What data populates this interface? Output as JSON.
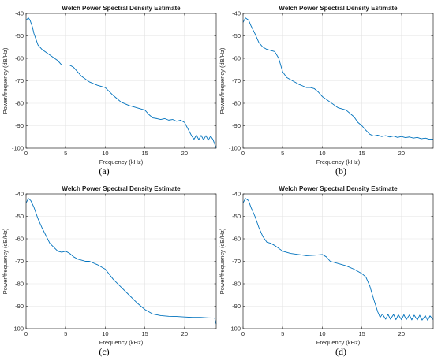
{
  "chart_data": [
    {
      "type": "line",
      "panel_label": "(a)",
      "title": "Welch Power Spectral Density Estimate",
      "xlabel": "Frequency (kHz)",
      "ylabel": "Power/frequency (dB/Hz)",
      "xlim": [
        0,
        24
      ],
      "ylim": [
        -100,
        -40
      ],
      "xticks": [
        0,
        5,
        10,
        15,
        20
      ],
      "yticks": [
        -100,
        -90,
        -80,
        -70,
        -60,
        -50,
        -40
      ],
      "grid": true,
      "line_color": "#0072BD",
      "x": [
        0,
        0.3,
        0.5,
        0.8,
        1.0,
        1.5,
        2.0,
        3.0,
        4.0,
        4.5,
        5.0,
        5.5,
        6.0,
        6.5,
        7.0,
        8.0,
        9.0,
        10.0,
        11.0,
        12.0,
        13.0,
        14.0,
        14.5,
        15.0,
        15.5,
        16.0,
        16.5,
        17.0,
        17.5,
        18.0,
        18.5,
        19.0,
        19.5,
        20.0,
        20.3,
        20.6,
        20.9,
        21.2,
        21.5,
        21.8,
        22.1,
        22.4,
        22.7,
        23.0,
        23.3,
        23.6,
        24.0
      ],
      "y": [
        -43,
        -42,
        -43,
        -46,
        -49,
        -54,
        -56,
        -58.5,
        -61,
        -63,
        -63,
        -63,
        -64,
        -66,
        -68,
        -70.5,
        -72,
        -73,
        -76.5,
        -79.5,
        -81,
        -82,
        -82.5,
        -83,
        -85,
        -86.5,
        -86.8,
        -87.2,
        -86.8,
        -87.5,
        -87.2,
        -88,
        -87.5,
        -88.5,
        -90.5,
        -92.5,
        -94.5,
        -96,
        -94.2,
        -96.2,
        -94.3,
        -96.3,
        -94.4,
        -96.4,
        -94.6,
        -96.2,
        -100
      ]
    },
    {
      "type": "line",
      "panel_label": "(b)",
      "title": "Welch Power Spectral Density Estimate",
      "xlabel": "Frequency (kHz)",
      "ylabel": "Power/frequency (dB/Hz)",
      "xlim": [
        0,
        24
      ],
      "ylim": [
        -100,
        -40
      ],
      "xticks": [
        0,
        5,
        10,
        15,
        20
      ],
      "yticks": [
        -100,
        -90,
        -80,
        -70,
        -60,
        -50,
        -40
      ],
      "grid": true,
      "line_color": "#0072BD",
      "x": [
        0,
        0.3,
        0.7,
        1.0,
        1.5,
        2.0,
        2.5,
        3.0,
        4.0,
        4.5,
        5.0,
        5.5,
        6.0,
        7.0,
        8.0,
        8.5,
        9.0,
        9.5,
        10.0,
        11.0,
        12.0,
        13.0,
        14.0,
        14.5,
        15.0,
        15.5,
        16.0,
        16.5,
        17.0,
        17.5,
        18.0,
        18.5,
        19.0,
        19.5,
        20.0,
        20.5,
        21.0,
        21.5,
        22.0,
        22.5,
        23.0,
        23.5,
        24.0
      ],
      "y": [
        -44,
        -42,
        -43,
        -45.5,
        -49,
        -53,
        -55,
        -56,
        -57,
        -60,
        -66,
        -68.5,
        -69.5,
        -71.5,
        -73,
        -73,
        -73.5,
        -75,
        -77,
        -79.5,
        -82,
        -83,
        -86,
        -88.5,
        -90,
        -92,
        -93.8,
        -94.6,
        -94.2,
        -94.8,
        -94.4,
        -95,
        -94.6,
        -95.2,
        -94.8,
        -95.3,
        -95,
        -95.5,
        -95.2,
        -95.8,
        -95.5,
        -96,
        -96
      ]
    },
    {
      "type": "line",
      "panel_label": "(c)",
      "title": "Welch Power Spectral Density Estimate",
      "xlabel": "Frequency (kHz)",
      "ylabel": "Power/frequency (dB/Hz)",
      "xlim": [
        0,
        24
      ],
      "ylim": [
        -100,
        -40
      ],
      "xticks": [
        0,
        5,
        10,
        15,
        20
      ],
      "yticks": [
        -100,
        -90,
        -80,
        -70,
        -60,
        -50,
        -40
      ],
      "grid": true,
      "line_color": "#0072BD",
      "x": [
        0,
        0.3,
        0.6,
        1.0,
        1.5,
        2.0,
        3.0,
        4.0,
        4.5,
        5.0,
        5.5,
        6.0,
        6.5,
        7.0,
        7.5,
        8.0,
        9.0,
        10.0,
        11.0,
        12.0,
        13.0,
        14.0,
        15.0,
        16.0,
        17.0,
        18.0,
        19.0,
        20.0,
        21.0,
        22.0,
        23.0,
        23.8,
        24.0
      ],
      "y": [
        -44,
        -42,
        -43,
        -46,
        -51,
        -55,
        -62,
        -65.5,
        -66,
        -65.5,
        -66.5,
        -68,
        -69,
        -69.5,
        -70,
        -70,
        -71.5,
        -73.5,
        -78,
        -81.5,
        -85,
        -88.5,
        -91.5,
        -93.5,
        -94.2,
        -94.5,
        -94.6,
        -94.8,
        -95,
        -95,
        -95.2,
        -95.3,
        -98
      ]
    },
    {
      "type": "line",
      "panel_label": "(d)",
      "title": "Welch Power Spectral Density Estimate",
      "xlabel": "Frequency (kHz)",
      "ylabel": "Power/frequency (dB/Hz)",
      "xlim": [
        0,
        24
      ],
      "ylim": [
        -100,
        -40
      ],
      "xticks": [
        0,
        5,
        10,
        15,
        20
      ],
      "yticks": [
        -100,
        -90,
        -80,
        -70,
        -60,
        -50,
        -40
      ],
      "grid": true,
      "line_color": "#0072BD",
      "x": [
        0,
        0.3,
        0.7,
        1.0,
        1.5,
        2.0,
        2.5,
        3.0,
        3.5,
        4.0,
        5.0,
        6.0,
        7.0,
        8.0,
        9.0,
        10.0,
        10.5,
        11.0,
        12.0,
        13.0,
        14.0,
        15.0,
        15.5,
        16.0,
        16.5,
        17.0,
        17.3,
        17.6,
        18.0,
        18.3,
        18.6,
        19.0,
        19.3,
        19.6,
        20.0,
        20.3,
        20.6,
        21.0,
        21.3,
        21.6,
        22.0,
        22.3,
        22.6,
        23.0,
        23.3,
        23.6,
        24.0
      ],
      "y": [
        -44,
        -42,
        -43,
        -46,
        -50,
        -55,
        -59,
        -61.5,
        -62,
        -63,
        -65.5,
        -66.5,
        -67,
        -67.5,
        -67.3,
        -67,
        -68,
        -70,
        -71,
        -72,
        -73.5,
        -75.5,
        -77,
        -81,
        -87,
        -92.5,
        -95,
        -93.5,
        -95.8,
        -93.6,
        -95.8,
        -93.7,
        -96,
        -93.8,
        -96,
        -93.8,
        -96,
        -93.9,
        -96.1,
        -94,
        -96.1,
        -94,
        -96.2,
        -94.2,
        -96.3,
        -94.3,
        -96
      ]
    }
  ]
}
